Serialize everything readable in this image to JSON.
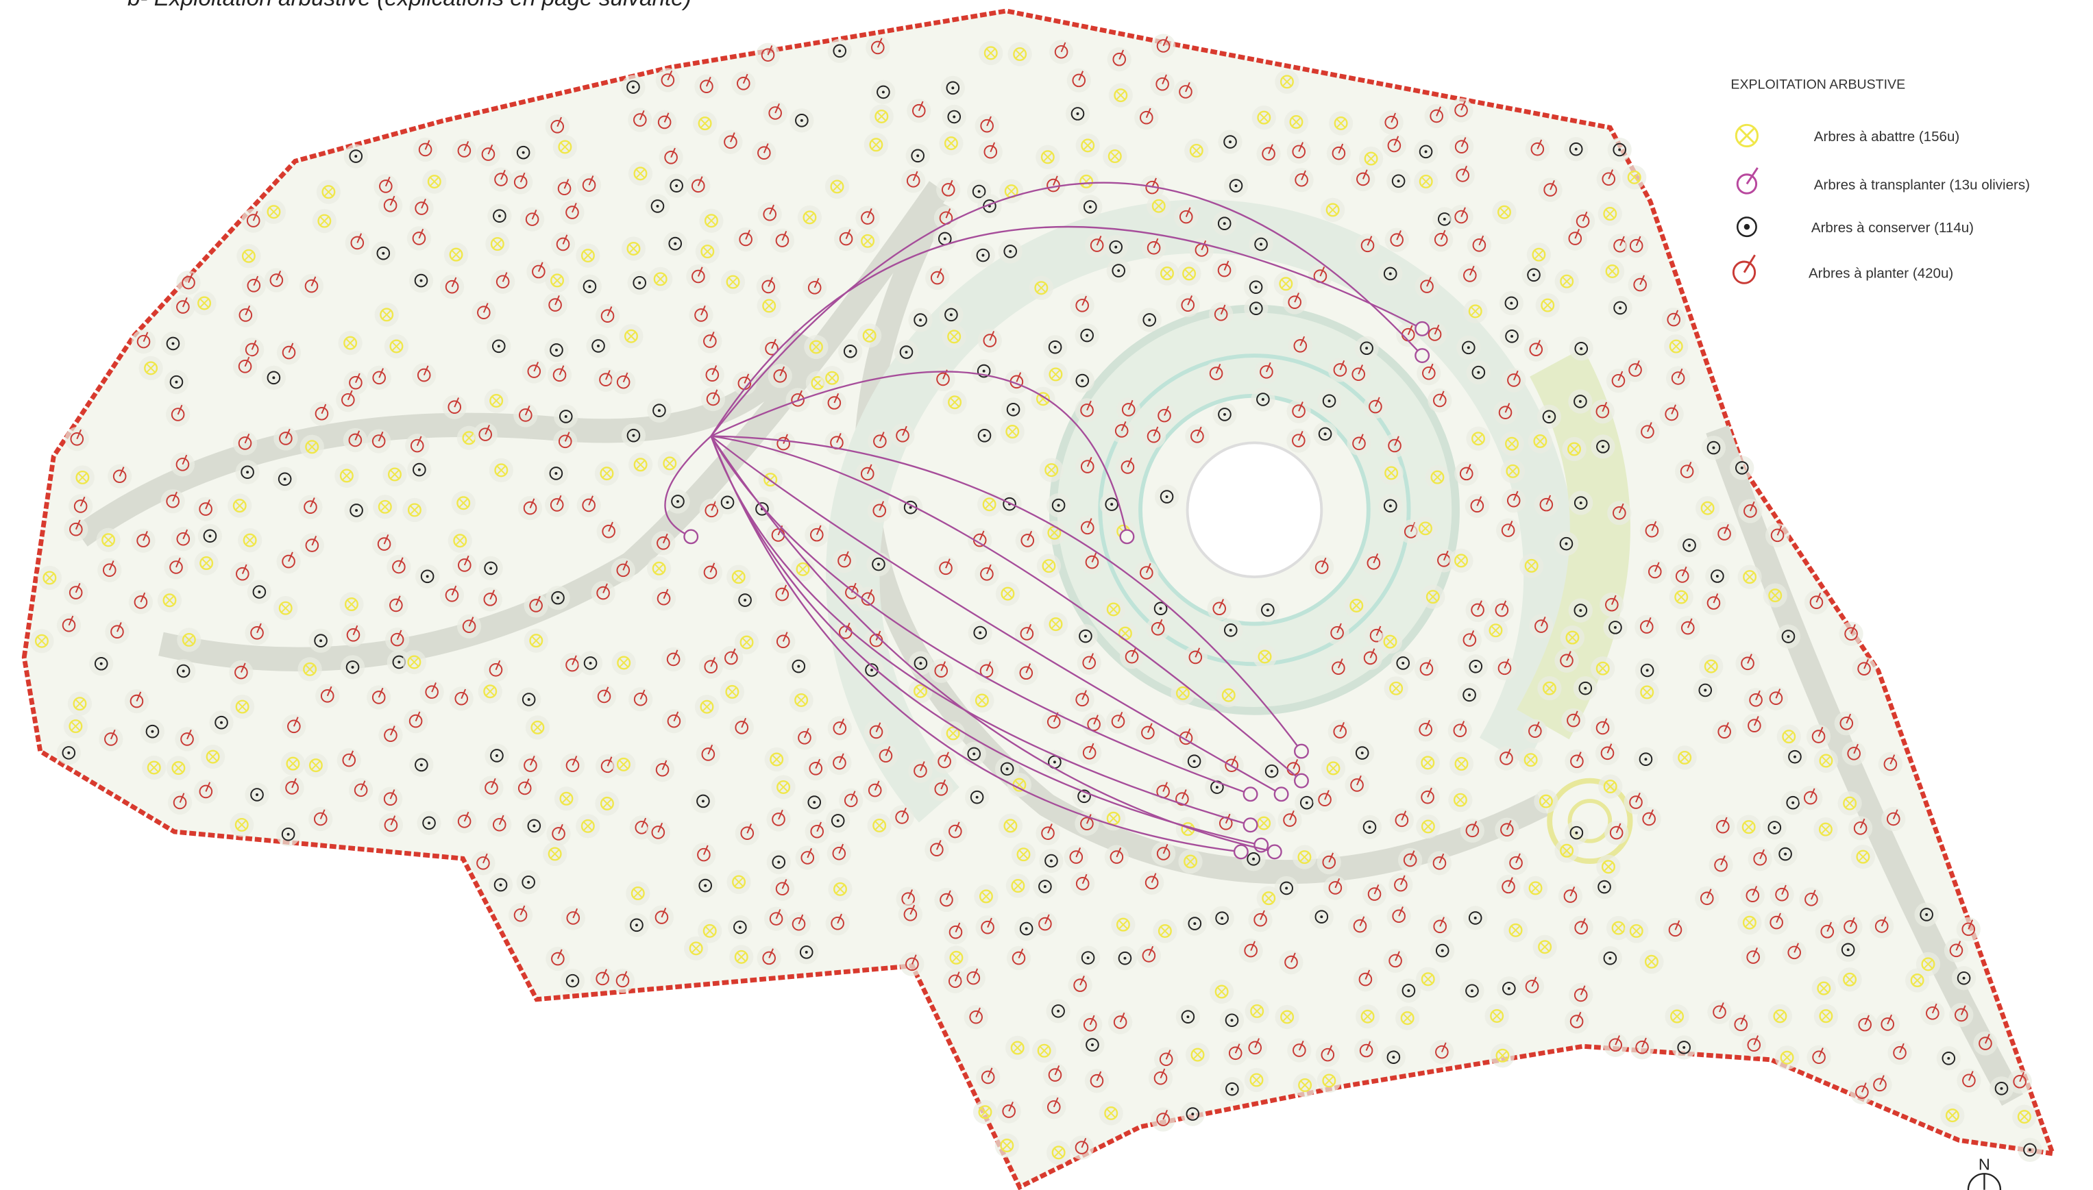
{
  "header": {
    "title": "b- Exploitation arbustive (explications en page suivante)"
  },
  "legend": {
    "title": "EXPLOITATION ARBUSTIVE",
    "items": [
      {
        "label": "Arbres à abattre (156u)"
      },
      {
        "label": "Arbres à transplanter (13u oliviers)"
      },
      {
        "label": "Arbres à conserver (114u)"
      },
      {
        "label": "Arbres à planter (420u)"
      }
    ]
  },
  "north": "N"
}
